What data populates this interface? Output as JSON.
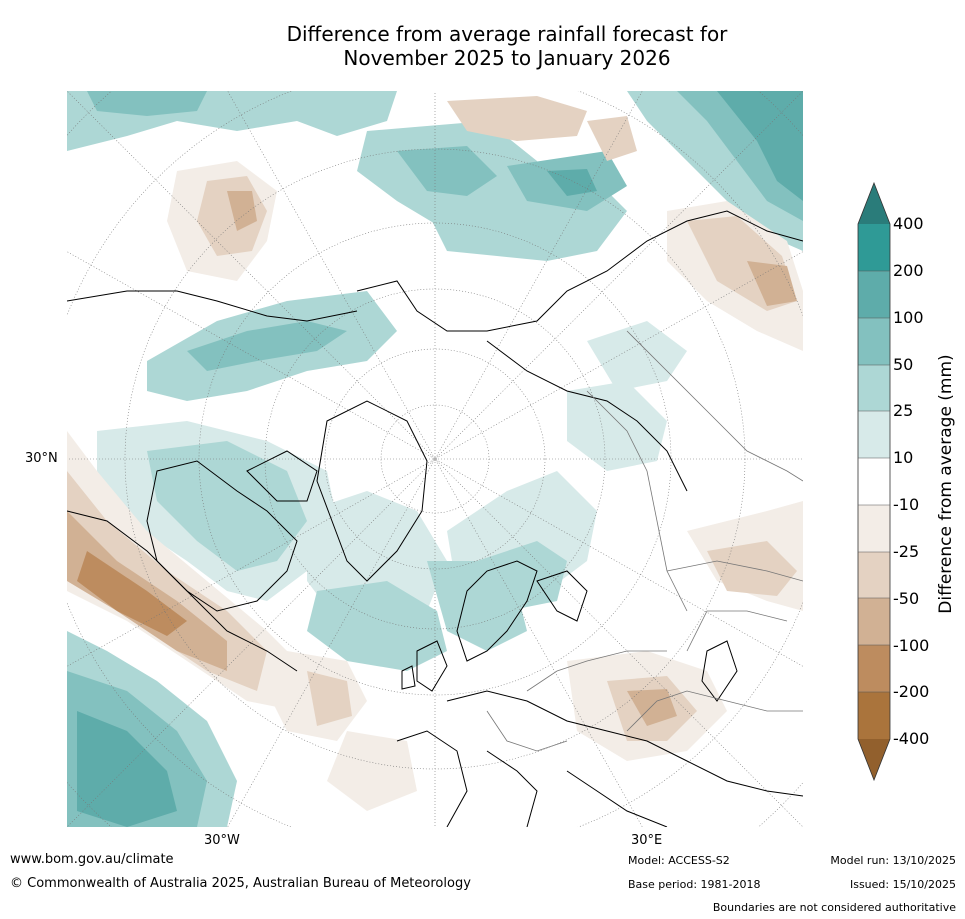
{
  "title": {
    "line1": "Difference from average rainfall forecast for",
    "line2": "November 2025 to January 2026"
  },
  "map": {
    "projection": "north polar stereographic",
    "lat_label": "30°N",
    "lon_labels": {
      "west": "30°W",
      "east": "30°E"
    }
  },
  "colorbar": {
    "title": "Difference from average (mm)",
    "ticks": [
      "400",
      "200",
      "100",
      "50",
      "25",
      "10",
      "-10",
      "-25",
      "-50",
      "-100",
      "-200",
      "-400"
    ],
    "colors": {
      "over": "#2a7c7a",
      "bin_200_400": "#2f9a96",
      "bin_100_200": "#5eacaa",
      "bin_50_100": "#83c1bf",
      "bin_25_50": "#add7d5",
      "bin_10_25": "#d7eae9",
      "neutral": "#ffffff",
      "bin_m25_m10": "#f3ede7",
      "bin_m50_m25": "#e4d2c2",
      "bin_m100_m50": "#d1b194",
      "bin_m200_m100": "#bd8c5f",
      "bin_m400_m200": "#aa743c",
      "under": "#92602d"
    }
  },
  "footer": {
    "website": "www.bom.gov.au/climate",
    "copyright": "© Commonwealth of Australia 2025, Australian Bureau of Meteorology",
    "model": "Model: ACCESS-S2",
    "base_period": "Base period: 1981-2018",
    "model_run": "Model run: 13/10/2025",
    "issued": "Issued: 15/10/2025",
    "disclaimer": "Boundaries are not considered authoritative"
  }
}
